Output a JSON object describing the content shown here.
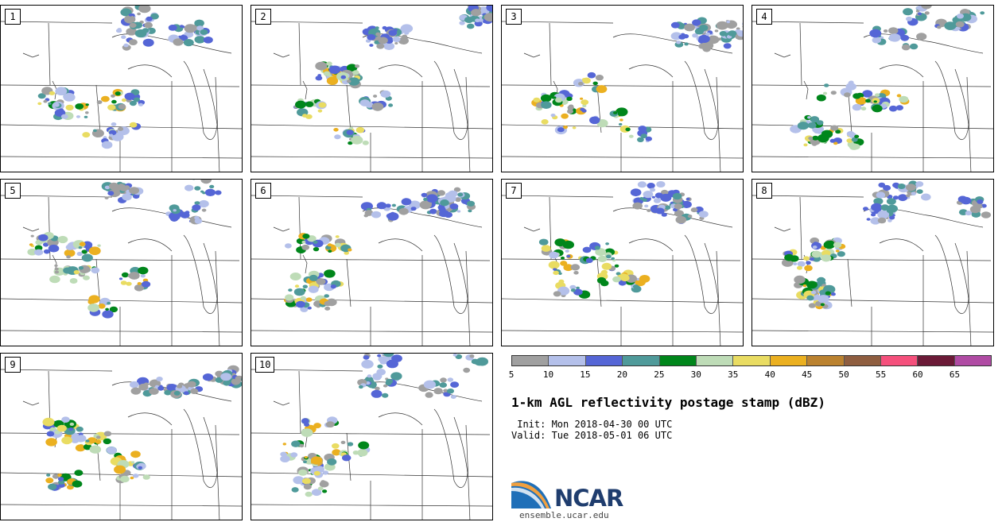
{
  "panels": [
    {
      "label": "1"
    },
    {
      "label": "2"
    },
    {
      "label": "3"
    },
    {
      "label": "4"
    },
    {
      "label": "5"
    },
    {
      "label": "6"
    },
    {
      "label": "7"
    },
    {
      "label": "8"
    },
    {
      "label": "9"
    },
    {
      "label": "10"
    }
  ],
  "colorbar": {
    "colors": [
      "#a0a0a0",
      "#b4c0ea",
      "#5566d6",
      "#4f9a9a",
      "#00861b",
      "#bedcb7",
      "#e9dc62",
      "#ebb020",
      "#bb8230",
      "#8f5e40",
      "#f5507c",
      "#6b1a37",
      "#b04ba4"
    ],
    "ticks": [
      "5",
      "10",
      "15",
      "20",
      "25",
      "30",
      "35",
      "40",
      "45",
      "50",
      "55",
      "60",
      "65"
    ]
  },
  "title": "1-km AGL reflectivity postage stamp (dBZ)",
  "init": " Init: Mon 2018-04-30 00 UTC",
  "valid": "Valid: Tue 2018-05-01 06 UTC",
  "logo": {
    "text": "NCAR",
    "url": "ensemble.ucar.edu"
  }
}
